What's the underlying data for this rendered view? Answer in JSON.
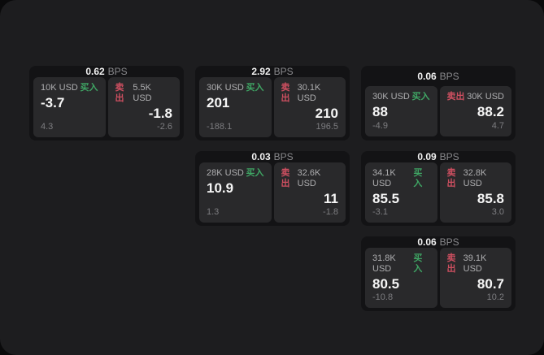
{
  "labels": {
    "buy": "买入",
    "sell": "卖出",
    "bps_unit": "BPS"
  },
  "colors": {
    "surface": "#1d1d1f",
    "card": "#131315",
    "panel": "#29292b",
    "buy_green": "#3fa564",
    "sell_red": "#cd4f60"
  },
  "cards": [
    {
      "bps": "0.62",
      "col": 1,
      "row": 1,
      "buy": {
        "amount": "10K USD",
        "value": "-3.7",
        "sub": "4.3"
      },
      "sell": {
        "amount": "5.5K USD",
        "value": "-1.8",
        "sub": "-2.6"
      }
    },
    {
      "bps": "2.92",
      "col": 2,
      "row": 1,
      "buy": {
        "amount": "30K USD",
        "value": "201",
        "sub": "-188.1"
      },
      "sell": {
        "amount": "30.1K USD",
        "value": "210",
        "sub": "196.5"
      }
    },
    {
      "bps": "0.06",
      "col": 3,
      "row": 1,
      "buy": {
        "amount": "30K USD",
        "value": "88",
        "sub": "-4.9"
      },
      "sell": {
        "amount": "30K USD",
        "value": "88.2",
        "sub": "4.7"
      }
    },
    {
      "bps": "0.03",
      "col": 2,
      "row": 2,
      "buy": {
        "amount": "28K USD",
        "value": "10.9",
        "sub": "1.3"
      },
      "sell": {
        "amount": "32.6K USD",
        "value": "11",
        "sub": "-1.8"
      }
    },
    {
      "bps": "0.09",
      "col": 3,
      "row": 2,
      "buy": {
        "amount": "34.1K USD",
        "value": "85.5",
        "sub": "-3.1"
      },
      "sell": {
        "amount": "32.8K USD",
        "value": "85.8",
        "sub": "3.0"
      }
    },
    {
      "bps": "0.06",
      "col": 3,
      "row": 3,
      "buy": {
        "amount": "31.8K USD",
        "value": "80.5",
        "sub": "-10.8"
      },
      "sell": {
        "amount": "39.1K USD",
        "value": "80.7",
        "sub": "10.2"
      }
    }
  ]
}
